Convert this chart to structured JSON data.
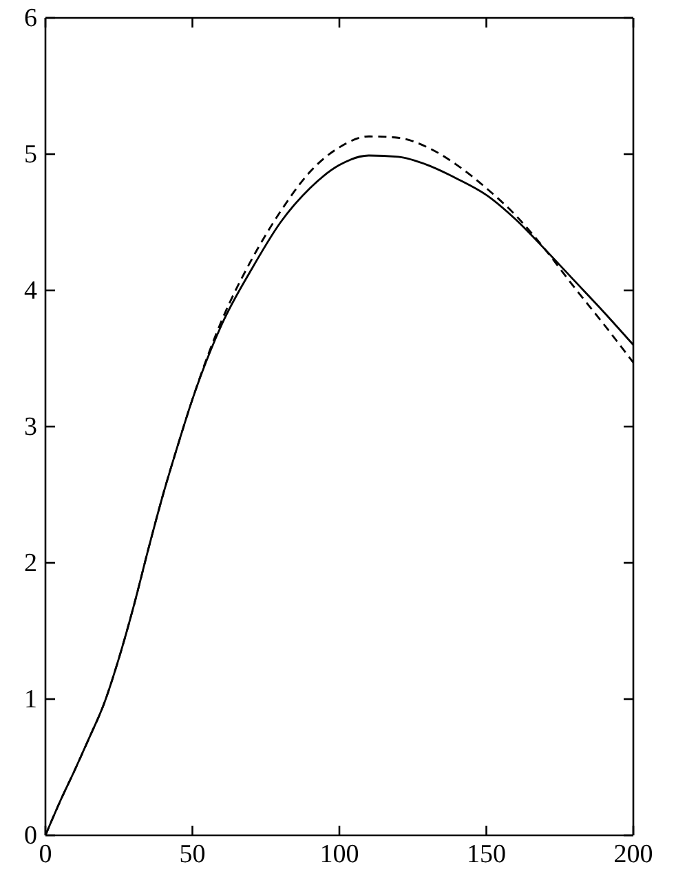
{
  "chart_data": {
    "type": "line",
    "x": [
      0,
      5,
      10,
      15,
      20,
      25,
      30,
      35,
      40,
      45,
      50,
      60,
      70,
      80,
      90,
      100,
      110,
      120,
      130,
      140,
      150,
      160,
      170,
      180,
      190,
      200
    ],
    "series": [
      {
        "color": "#000000",
        "line_style": "solid",
        "values": [
          0,
          0.25,
          0.48,
          0.72,
          0.97,
          1.3,
          1.68,
          2.1,
          2.5,
          2.86,
          3.2,
          3.75,
          4.15,
          4.5,
          4.75,
          4.92,
          4.99,
          4.98,
          4.92,
          4.82,
          4.7,
          4.52,
          4.3,
          4.07,
          3.84,
          3.6
        ]
      },
      {
        "color": "#000000",
        "line_style": "dashed",
        "values": [
          0,
          0.25,
          0.48,
          0.72,
          0.97,
          1.3,
          1.68,
          2.1,
          2.5,
          2.86,
          3.2,
          3.78,
          4.22,
          4.58,
          4.87,
          5.05,
          5.13,
          5.12,
          5.05,
          4.92,
          4.75,
          4.55,
          4.3,
          4.02,
          3.75,
          3.47
        ]
      }
    ],
    "xlim": [
      0,
      200
    ],
    "xticks": [
      0,
      50,
      100,
      150,
      200
    ],
    "ylim": [
      0,
      6
    ],
    "yticks": [
      0,
      1,
      2,
      3,
      4,
      5,
      6
    ],
    "grid": false
  }
}
